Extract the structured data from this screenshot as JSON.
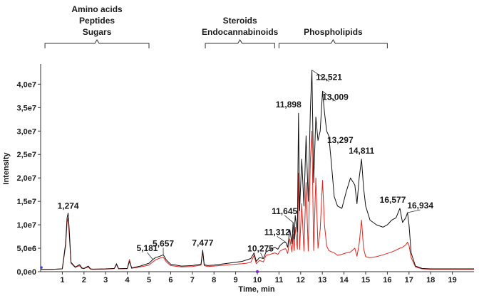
{
  "chart_data": {
    "type": "line",
    "xlabel": "Time, min",
    "ylabel": "Intensity",
    "xlim": [
      0,
      20
    ],
    "ylim": [
      0,
      44000000
    ],
    "x_ticks": [
      1,
      2,
      3,
      4,
      5,
      6,
      7,
      8,
      9,
      10,
      11,
      12,
      13,
      14,
      15,
      16,
      17,
      18,
      19
    ],
    "y_ticks": [
      {
        "value": 0,
        "label": "0,0e0"
      },
      {
        "value": 5000000,
        "label": "5,0e6"
      },
      {
        "value": 10000000,
        "label": "1,0e7"
      },
      {
        "value": 15000000,
        "label": "1,5e7"
      },
      {
        "value": 20000000,
        "label": "2,0e7"
      },
      {
        "value": 25000000,
        "label": "2,5e7"
      },
      {
        "value": 30000000,
        "label": "3,0e7"
      },
      {
        "value": 35000000,
        "label": "3,5e7"
      },
      {
        "value": 40000000,
        "label": "4,0e7"
      }
    ],
    "grid": false,
    "legend": "none",
    "colors": {
      "series_1": "#111111",
      "series_2": "#e0261e",
      "axis": "#333333",
      "marker": "#7b2fd0",
      "left_marker": "#2a3fd8"
    },
    "groups": [
      {
        "lines": [
          "Amino acids",
          "Peptides",
          "Sugars"
        ],
        "range": [
          0.2,
          5.0
        ]
      },
      {
        "lines": [
          "Steroids",
          "Endocannabinoids"
        ],
        "range": [
          7.6,
          10.8
        ]
      },
      {
        "lines": [
          "Phospholipids"
        ],
        "range": [
          11.0,
          16.0
        ]
      }
    ],
    "annotations": [
      {
        "text": "1,274",
        "x": 1.27,
        "y": 12500000
      },
      {
        "text": "5,181",
        "x": 5.18,
        "y": 2600000
      },
      {
        "text": "5,657",
        "x": 5.66,
        "y": 3600000
      },
      {
        "text": "7,477",
        "x": 7.48,
        "y": 4600000
      },
      {
        "text": "10,275",
        "x": 10.28,
        "y": 2800000
      },
      {
        "text": "11,312",
        "x": 11.31,
        "y": 6300000
      },
      {
        "text": "11,645",
        "x": 11.65,
        "y": 10500000
      },
      {
        "text": "11,898",
        "x": 11.9,
        "y": 33800000
      },
      {
        "text": "12,521",
        "x": 12.52,
        "y": 43000000
      },
      {
        "text": "13,009",
        "x": 13.01,
        "y": 38500000
      },
      {
        "text": "13,297",
        "x": 13.3,
        "y": 29000000
      },
      {
        "text": "14,811",
        "x": 14.81,
        "y": 24000000
      },
      {
        "text": "16,577",
        "x": 16.58,
        "y": 13500000
      },
      {
        "text": "16,934",
        "x": 16.93,
        "y": 12600000
      }
    ],
    "series": [
      {
        "color": "#111111",
        "x": [
          0,
          0.5,
          1.0,
          1.15,
          1.22,
          1.27,
          1.32,
          1.4,
          1.6,
          1.8,
          1.9,
          2.0,
          2.2,
          2.3,
          2.4,
          3.0,
          3.4,
          3.5,
          3.6,
          4.0,
          4.1,
          4.2,
          4.3,
          4.6,
          5.0,
          5.18,
          5.3,
          5.5,
          5.66,
          5.8,
          6.0,
          6.5,
          7.0,
          7.4,
          7.48,
          7.55,
          7.7,
          8.0,
          8.5,
          9.0,
          9.3,
          9.5,
          9.7,
          9.85,
          9.95,
          10.1,
          10.28,
          10.4,
          10.6,
          10.8,
          10.95,
          11.05,
          11.2,
          11.31,
          11.4,
          11.5,
          11.6,
          11.65,
          11.7,
          11.75,
          11.85,
          11.9,
          11.95,
          12.05,
          12.15,
          12.25,
          12.35,
          12.45,
          12.52,
          12.6,
          12.7,
          12.8,
          12.9,
          13.01,
          13.1,
          13.2,
          13.3,
          13.4,
          13.55,
          13.7,
          13.9,
          14.1,
          14.3,
          14.5,
          14.6,
          14.7,
          14.81,
          14.9,
          15.0,
          15.2,
          15.5,
          15.8,
          16.0,
          16.2,
          16.4,
          16.58,
          16.7,
          16.85,
          16.93,
          17.0,
          17.1,
          17.3,
          17.6,
          18.0,
          20.0
        ],
        "values": [
          500000,
          500000,
          600000,
          6000000,
          11500000,
          12500000,
          9000000,
          2000000,
          1000000,
          1500000,
          800000,
          700000,
          1200000,
          600000,
          550000,
          600000,
          700000,
          1700000,
          650000,
          700000,
          2200000,
          800000,
          900000,
          1200000,
          1800000,
          2600000,
          3000000,
          3300000,
          3600000,
          2500000,
          1600000,
          1200000,
          1300000,
          1600000,
          4600000,
          1500000,
          1300000,
          1400000,
          1700000,
          2000000,
          2200000,
          2500000,
          2800000,
          4000000,
          2200000,
          3000000,
          2800000,
          4200000,
          4700000,
          5200000,
          4800000,
          5600000,
          6200000,
          6300000,
          5200000,
          9000000,
          6000000,
          10500000,
          7000000,
          12000000,
          8500000,
          33800000,
          13000000,
          24000000,
          14000000,
          29000000,
          15000000,
          35000000,
          43000000,
          19000000,
          33000000,
          28000000,
          30000000,
          38500000,
          34000000,
          30000000,
          29000000,
          24000000,
          16000000,
          14000000,
          13500000,
          17000000,
          20000000,
          18500000,
          14500000,
          20000000,
          24000000,
          18000000,
          14000000,
          11000000,
          10000000,
          9500000,
          10000000,
          11000000,
          11500000,
          13500000,
          10500000,
          11500000,
          12600000,
          10000000,
          4000000,
          1200000,
          700000,
          600000,
          600000
        ]
      },
      {
        "color": "#e0261e",
        "x": [
          0,
          0.5,
          1.0,
          1.15,
          1.22,
          1.27,
          1.32,
          1.4,
          1.6,
          1.8,
          1.9,
          2.0,
          2.2,
          2.3,
          2.4,
          3.0,
          3.4,
          3.5,
          3.6,
          4.0,
          4.1,
          4.2,
          4.3,
          4.6,
          5.0,
          5.18,
          5.3,
          5.5,
          5.66,
          5.8,
          6.0,
          6.5,
          7.0,
          7.4,
          7.48,
          7.55,
          7.7,
          8.0,
          8.5,
          9.0,
          9.3,
          9.5,
          9.7,
          9.85,
          9.95,
          10.1,
          10.28,
          10.4,
          10.6,
          10.8,
          10.95,
          11.05,
          11.2,
          11.31,
          11.4,
          11.5,
          11.6,
          11.65,
          11.7,
          11.75,
          11.85,
          11.9,
          11.95,
          12.05,
          12.15,
          12.25,
          12.35,
          12.45,
          12.52,
          12.6,
          12.7,
          12.8,
          12.9,
          13.01,
          13.1,
          13.2,
          13.3,
          13.4,
          13.55,
          13.7,
          13.9,
          14.1,
          14.3,
          14.5,
          14.6,
          14.7,
          14.81,
          14.9,
          15.0,
          15.2,
          15.5,
          15.8,
          16.0,
          16.2,
          16.4,
          16.58,
          16.7,
          16.85,
          16.93,
          17.0,
          17.1,
          17.3,
          17.6,
          18.0,
          20.0
        ],
        "values": [
          500000,
          500000,
          600000,
          5500000,
          10500000,
          11500000,
          8000000,
          1800000,
          900000,
          1300000,
          700000,
          650000,
          1000000,
          550000,
          500000,
          550000,
          650000,
          1500000,
          600000,
          650000,
          2600000,
          700000,
          800000,
          1000000,
          1400000,
          2100000,
          2500000,
          2900000,
          3100000,
          2100000,
          1300000,
          1000000,
          1100000,
          1400000,
          4300000,
          1300000,
          1100000,
          1200000,
          1400000,
          1600000,
          1700000,
          1800000,
          2000000,
          3500000,
          1700000,
          2400000,
          2100000,
          3500000,
          3700000,
          4000000,
          3700000,
          4400000,
          4800000,
          4900000,
          3900000,
          7000000,
          4200000,
          8000000,
          4500000,
          9500000,
          4800000,
          21000000,
          4700000,
          14500000,
          4400000,
          19000000,
          4400000,
          24000000,
          30000000,
          4500000,
          20000000,
          5000000,
          9000000,
          19500000,
          10000000,
          5500000,
          4500000,
          4300000,
          4000000,
          3500000,
          3700000,
          4000000,
          4200000,
          5000000,
          3300000,
          6000000,
          11000000,
          5000000,
          3200000,
          3000000,
          3200000,
          3600000,
          3900000,
          4200000,
          4600000,
          5000000,
          5200000,
          5700000,
          6300000,
          5600000,
          3000000,
          1000000,
          600000,
          500000,
          500000
        ]
      }
    ]
  }
}
